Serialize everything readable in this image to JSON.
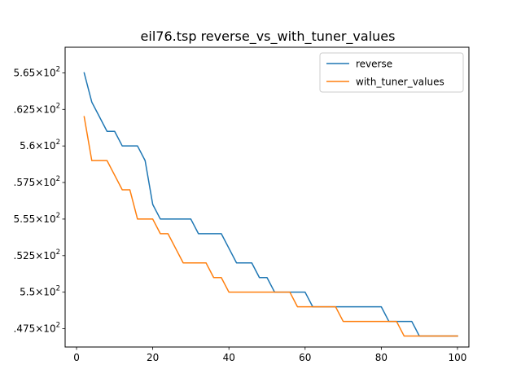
{
  "chart_data": {
    "type": "line",
    "title": "eil76.tsp  reverse_vs_with_tuner_values",
    "xlabel": "",
    "ylabel": "",
    "xlim": [
      -3,
      103
    ],
    "ylim": [
      546.25,
      566.75
    ],
    "xticks": [
      0,
      20,
      40,
      60,
      80,
      100
    ],
    "xtick_labels": [
      "0",
      "20",
      "40",
      "60",
      "80",
      "100"
    ],
    "yticks": [
      547.5,
      550,
      552.5,
      555,
      557.5,
      560,
      562.5,
      565
    ],
    "ytick_labels": [
      {
        "base": ".475",
        "times": "×10",
        "exp": "2"
      },
      {
        "base": "5.5",
        "times": "×10",
        "exp": "2"
      },
      {
        "base": ".525",
        "times": "×10",
        "exp": "2"
      },
      {
        "base": "5.55",
        "times": "×10",
        "exp": "2"
      },
      {
        "base": ".575",
        "times": "×10",
        "exp": "2"
      },
      {
        "base": "5.6",
        "times": "×10",
        "exp": "2"
      },
      {
        "base": ".625",
        "times": "×10",
        "exp": "2"
      },
      {
        "base": "5.65",
        "times": "×10",
        "exp": "2"
      }
    ],
    "grid": false,
    "legend_position": "top-right",
    "series": [
      {
        "name": "reverse",
        "color": "#1f77b4",
        "points": [
          [
            2,
            565
          ],
          [
            4,
            563
          ],
          [
            6,
            562
          ],
          [
            8,
            561
          ],
          [
            10,
            561
          ],
          [
            12,
            560
          ],
          [
            14,
            560
          ],
          [
            16,
            560
          ],
          [
            18,
            559
          ],
          [
            20,
            556
          ],
          [
            22,
            555
          ],
          [
            24,
            555
          ],
          [
            26,
            555
          ],
          [
            28,
            555
          ],
          [
            30,
            555
          ],
          [
            32,
            554
          ],
          [
            34,
            554
          ],
          [
            36,
            554
          ],
          [
            38,
            554
          ],
          [
            40,
            553
          ],
          [
            42,
            552
          ],
          [
            44,
            552
          ],
          [
            46,
            552
          ],
          [
            48,
            551
          ],
          [
            50,
            551
          ],
          [
            52,
            550
          ],
          [
            54,
            550
          ],
          [
            56,
            550
          ],
          [
            58,
            550
          ],
          [
            60,
            550
          ],
          [
            62,
            549
          ],
          [
            64,
            549
          ],
          [
            66,
            549
          ],
          [
            68,
            549
          ],
          [
            70,
            549
          ],
          [
            72,
            549
          ],
          [
            74,
            549
          ],
          [
            76,
            549
          ],
          [
            78,
            549
          ],
          [
            80,
            549
          ],
          [
            82,
            548
          ],
          [
            84,
            548
          ],
          [
            86,
            548
          ],
          [
            88,
            548
          ],
          [
            90,
            547
          ],
          [
            92,
            547
          ],
          [
            94,
            547
          ],
          [
            96,
            547
          ],
          [
            98,
            547
          ],
          [
            100,
            547
          ]
        ]
      },
      {
        "name": "with_tuner_values",
        "color": "#ff7f0e",
        "points": [
          [
            2,
            562
          ],
          [
            4,
            559
          ],
          [
            6,
            559
          ],
          [
            8,
            559
          ],
          [
            10,
            558
          ],
          [
            12,
            557
          ],
          [
            14,
            557
          ],
          [
            16,
            555
          ],
          [
            18,
            555
          ],
          [
            20,
            555
          ],
          [
            22,
            554
          ],
          [
            24,
            554
          ],
          [
            26,
            553
          ],
          [
            28,
            552
          ],
          [
            30,
            552
          ],
          [
            32,
            552
          ],
          [
            34,
            552
          ],
          [
            36,
            551
          ],
          [
            38,
            551
          ],
          [
            40,
            550
          ],
          [
            42,
            550
          ],
          [
            44,
            550
          ],
          [
            46,
            550
          ],
          [
            48,
            550
          ],
          [
            50,
            550
          ],
          [
            52,
            550
          ],
          [
            54,
            550
          ],
          [
            56,
            550
          ],
          [
            58,
            549
          ],
          [
            60,
            549
          ],
          [
            62,
            549
          ],
          [
            64,
            549
          ],
          [
            66,
            549
          ],
          [
            68,
            549
          ],
          [
            70,
            548
          ],
          [
            72,
            548
          ],
          [
            74,
            548
          ],
          [
            76,
            548
          ],
          [
            78,
            548
          ],
          [
            80,
            548
          ],
          [
            82,
            548
          ],
          [
            84,
            548
          ],
          [
            86,
            547
          ],
          [
            88,
            547
          ],
          [
            90,
            547
          ],
          [
            92,
            547
          ],
          [
            94,
            547
          ],
          [
            96,
            547
          ],
          [
            98,
            547
          ],
          [
            100,
            547
          ]
        ]
      }
    ]
  }
}
